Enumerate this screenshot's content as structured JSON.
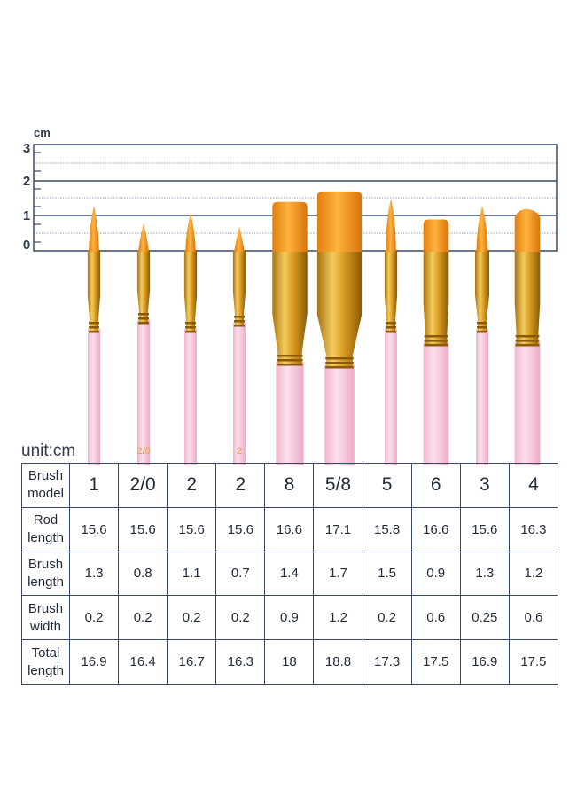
{
  "ruler": {
    "unit": "cm",
    "ticks": [
      "3",
      "2",
      "1",
      "0"
    ]
  },
  "brushes": [
    {
      "model": "1",
      "tip": "round",
      "handle_marking": ""
    },
    {
      "model": "2/0",
      "tip": "round",
      "handle_marking": "2/0"
    },
    {
      "model": "2",
      "tip": "round",
      "handle_marking": ""
    },
    {
      "model": "2",
      "tip": "round",
      "handle_marking": "2"
    },
    {
      "model": "8",
      "tip": "flat",
      "handle_marking": ""
    },
    {
      "model": "5/8",
      "tip": "flat",
      "handle_marking": ""
    },
    {
      "model": "5",
      "tip": "round",
      "handle_marking": ""
    },
    {
      "model": "6",
      "tip": "flat",
      "handle_marking": ""
    },
    {
      "model": "3",
      "tip": "round",
      "handle_marking": ""
    },
    {
      "model": "4",
      "tip": "angled",
      "handle_marking": ""
    }
  ],
  "colors": {
    "handle": "#f6c8dc",
    "ferrule": "#d9a126",
    "bristle": "#f29b1a",
    "grid": "#3a4a66",
    "text": "#222b3a"
  },
  "table": {
    "unit_label": "unit:cm",
    "rows": [
      {
        "header": [
          "Brush",
          "model"
        ],
        "values": [
          "1",
          "2/0",
          "2",
          "2",
          "8",
          "5/8",
          "5",
          "6",
          "3",
          "4"
        ]
      },
      {
        "header": [
          "Rod",
          "length"
        ],
        "values": [
          "15.6",
          "15.6",
          "15.6",
          "15.6",
          "16.6",
          "17.1",
          "15.8",
          "16.6",
          "15.6",
          "16.3"
        ]
      },
      {
        "header": [
          "Brush",
          "length"
        ],
        "values": [
          "1.3",
          "0.8",
          "1.1",
          "0.7",
          "1.4",
          "1.7",
          "1.5",
          "0.9",
          "1.3",
          "1.2"
        ]
      },
      {
        "header": [
          "Brush",
          "width"
        ],
        "values": [
          "0.2",
          "0.2",
          "0.2",
          "0.2",
          "0.9",
          "1.2",
          "0.2",
          "0.6",
          "0.25",
          "0.6"
        ]
      },
      {
        "header": [
          "Total",
          "length"
        ],
        "values": [
          "16.9",
          "16.4",
          "16.7",
          "16.3",
          "18",
          "18.8",
          "17.3",
          "17.5",
          "16.9",
          "17.5"
        ]
      }
    ]
  }
}
